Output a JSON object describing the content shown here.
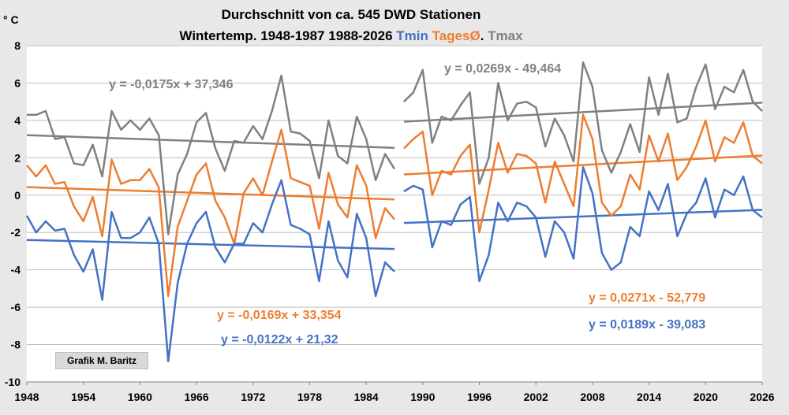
{
  "chart_data": {
    "type": "line",
    "title": "Durchschnitt von ca. 545 DWD Stationen",
    "subtitle_parts": [
      {
        "text": "Wintertemp. 1948-1987  1988-2026 ",
        "color": "#000000"
      },
      {
        "text": "Tmin ",
        "color": "#4472C4"
      },
      {
        "text": "TagesØ",
        "color": "#ED7D31"
      },
      {
        "text": ". ",
        "color": "#000000"
      },
      {
        "text": "Tmax",
        "color": "#808080"
      }
    ],
    "ylabel": "° C",
    "ylim": [
      -10,
      8
    ],
    "yticks": [
      -10,
      -8,
      -6,
      -4,
      -2,
      0,
      2,
      4,
      6,
      8
    ],
    "xlim": [
      1948,
      2026
    ],
    "xticks": [
      1948,
      1954,
      1960,
      1966,
      1972,
      1978,
      1984,
      1990,
      1996,
      2002,
      2008,
      2014,
      2020,
      2026
    ],
    "grid": true,
    "credit": "Grafik M. Baritz",
    "colors": {
      "tmin": "#4472C4",
      "mean": "#ED7D31",
      "tmax": "#808080"
    },
    "series": [
      {
        "key": "tmax",
        "color": "#808080",
        "segments": [
          {
            "x_start": 1948,
            "values": [
              4.3,
              4.3,
              4.5,
              3.0,
              3.1,
              1.7,
              1.6,
              2.7,
              1.0,
              4.5,
              3.5,
              4.0,
              3.5,
              4.1,
              3.2,
              -2.1,
              1.1,
              2.2,
              3.9,
              4.4,
              2.5,
              1.3,
              2.9,
              2.8,
              3.7,
              3.0,
              4.5,
              6.4,
              3.4,
              3.3,
              2.9,
              0.9,
              4.0,
              2.1,
              1.7,
              4.2,
              3.0,
              0.8,
              2.2,
              1.4
            ]
          },
          {
            "x_start": 1988,
            "values": [
              5.0,
              5.5,
              6.7,
              2.8,
              4.2,
              4.0,
              4.8,
              5.5,
              0.6,
              2.0,
              6.0,
              4.0,
              4.9,
              5.0,
              4.7,
              2.6,
              4.1,
              3.2,
              1.8,
              7.1,
              5.8,
              2.4,
              1.2,
              2.3,
              3.8,
              2.3,
              6.3,
              4.3,
              6.5,
              3.9,
              4.1,
              5.8,
              7.0,
              4.6,
              5.8,
              5.5,
              6.7,
              5.0,
              4.5
            ]
          }
        ]
      },
      {
        "key": "mean",
        "color": "#ED7D31",
        "segments": [
          {
            "x_start": 1948,
            "values": [
              1.6,
              1.0,
              1.6,
              0.6,
              0.7,
              -0.6,
              -1.4,
              -0.1,
              -2.2,
              1.9,
              0.6,
              0.8,
              0.8,
              1.4,
              0.4,
              -5.4,
              -1.7,
              -0.3,
              1.1,
              1.7,
              -0.3,
              -1.2,
              -2.6,
              0.1,
              0.9,
              0.0,
              1.8,
              3.5,
              0.9,
              0.7,
              0.5,
              -1.8,
              1.2,
              -0.5,
              -1.2,
              1.6,
              0.5,
              -2.3,
              -0.7,
              -1.3
            ]
          },
          {
            "x_start": 1988,
            "values": [
              2.5,
              3.0,
              3.4,
              0.0,
              1.3,
              1.1,
              2.1,
              2.7,
              -2.0,
              0.3,
              2.8,
              1.2,
              2.2,
              2.1,
              1.7,
              -0.4,
              1.8,
              0.6,
              -0.6,
              4.3,
              3.0,
              -0.4,
              -1.1,
              -0.6,
              1.1,
              0.3,
              3.2,
              1.8,
              3.3,
              0.8,
              1.5,
              2.6,
              4.0,
              1.8,
              3.1,
              2.8,
              3.9,
              2.1,
              1.7
            ]
          }
        ]
      },
      {
        "key": "tmin",
        "color": "#4472C4",
        "segments": [
          {
            "x_start": 1948,
            "values": [
              -1.1,
              -2.0,
              -1.4,
              -1.9,
              -1.8,
              -3.2,
              -4.1,
              -2.9,
              -5.6,
              -0.9,
              -2.3,
              -2.3,
              -2.0,
              -1.2,
              -2.6,
              -8.9,
              -4.7,
              -2.6,
              -1.5,
              -0.9,
              -2.8,
              -3.6,
              -2.6,
              -2.6,
              -1.5,
              -2.0,
              -0.5,
              0.8,
              -1.6,
              -1.8,
              -2.1,
              -4.6,
              -1.4,
              -3.5,
              -4.4,
              -1.0,
              -2.3,
              -5.4,
              -3.6,
              -4.1
            ]
          },
          {
            "x_start": 1988,
            "values": [
              0.2,
              0.5,
              0.3,
              -2.8,
              -1.4,
              -1.6,
              -0.5,
              -0.1,
              -4.6,
              -3.2,
              -0.4,
              -1.4,
              -0.4,
              -0.6,
              -1.2,
              -3.3,
              -1.4,
              -2.0,
              -3.4,
              1.5,
              0.1,
              -3.1,
              -4.0,
              -3.6,
              -1.7,
              -2.2,
              0.2,
              -0.8,
              0.6,
              -2.2,
              -1.0,
              -0.4,
              0.9,
              -1.2,
              0.3,
              0.0,
              1.0,
              -0.8,
              -1.2
            ]
          }
        ]
      }
    ],
    "trendlines": [
      {
        "series": "tmax",
        "period": "1948-1987",
        "label": "y = -0,0175x + 37,346",
        "x": [
          1948,
          1987
        ],
        "y": [
          3.21,
          2.53
        ],
        "color": "#808080"
      },
      {
        "series": "mean",
        "period": "1948-1987",
        "label": "y = -0,0169x + 33,354",
        "x": [
          1948,
          1987
        ],
        "y": [
          0.43,
          -0.23
        ],
        "color": "#ED7D31"
      },
      {
        "series": "tmin",
        "period": "1948-1987",
        "label": "y = -0,0122x + 21,32",
        "x": [
          1948,
          1987
        ],
        "y": [
          -2.4,
          -2.88
        ],
        "color": "#4472C4"
      },
      {
        "series": "tmax",
        "period": "1988-2026",
        "label": "y = 0,0269x - 49,464",
        "x": [
          1988,
          2026
        ],
        "y": [
          3.93,
          4.95
        ],
        "color": "#808080"
      },
      {
        "series": "mean",
        "period": "1988-2026",
        "label": "y = 0,0271x - 52,779",
        "x": [
          1988,
          2026
        ],
        "y": [
          1.11,
          2.12
        ],
        "color": "#ED7D31"
      },
      {
        "series": "tmin",
        "period": "1988-2026",
        "label": "y = 0,0189x - 39,083",
        "x": [
          1988,
          2026
        ],
        "y": [
          -1.49,
          -0.79
        ],
        "color": "#4472C4"
      }
    ]
  }
}
